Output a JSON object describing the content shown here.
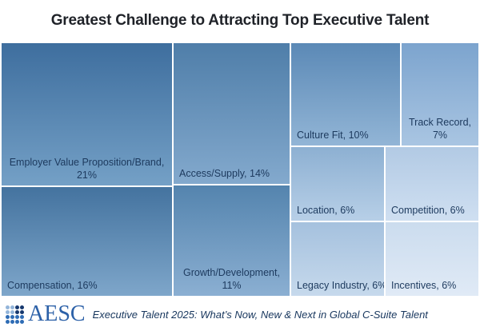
{
  "title": "Greatest Challenge to Attracting Top Executive Talent",
  "chart_data": {
    "type": "treemap",
    "title": "Greatest Challenge to Attracting Top Executive Talent",
    "unit": "percent",
    "legend": "none",
    "nodes": [
      {
        "name": "Employer Value Proposition/Brand",
        "value": 21,
        "label": "Employer Value Proposition/Brand,\n21%",
        "fill_top": "#3e6e9e",
        "fill_bottom": "#74a0c6"
      },
      {
        "name": "Compensation",
        "value": 16,
        "label": "Compensation, 16%",
        "fill_top": "#44739f",
        "fill_bottom": "#7ea6ca"
      },
      {
        "name": "Access/Supply",
        "value": 14,
        "label": "Access/Supply, 14%",
        "fill_top": "#4f7ea9",
        "fill_bottom": "#83a9cd"
      },
      {
        "name": "Growth/Development",
        "value": 11,
        "label": "Growth/Development,\n11%",
        "fill_top": "#5484ae",
        "fill_bottom": "#8bafd2"
      },
      {
        "name": "Culture Fit",
        "value": 10,
        "label": "Culture Fit, 10%",
        "fill_top": "#5b89b6",
        "fill_bottom": "#92b5d6"
      },
      {
        "name": "Track Record",
        "value": 7,
        "label": "Track Record,\n7%",
        "fill_top": "#7ca4ce",
        "fill_bottom": "#a9c5e2"
      },
      {
        "name": "Location",
        "value": 6,
        "label": "Location, 6%",
        "fill_top": "#8db0d2",
        "fill_bottom": "#b7cfe7"
      },
      {
        "name": "Competition",
        "value": 6,
        "label": "Competition, 6%",
        "fill_top": "#b2cae4",
        "fill_bottom": "#cfdff1"
      },
      {
        "name": "Legacy Industry",
        "value": 6,
        "label": "Legacy Industry, 6%",
        "fill_top": "#a5c1de",
        "fill_bottom": "#c6d9ec"
      },
      {
        "name": "Incentives",
        "value": 6,
        "label": "Incentives, 6%",
        "fill_top": "#cbdcee",
        "fill_bottom": "#e0eaf6"
      }
    ]
  },
  "footer": {
    "brand": "AESC",
    "caption": "Executive Talent 2025: What’s Now, New & Next in Global C-Suite Talent"
  },
  "colors": {
    "label_text": "#1d3a5e",
    "title_text": "#1f2228",
    "brand_blue": "#2c61a8",
    "logo_dark": "#16386e",
    "logo_light": "#93b5da",
    "logo_mid": "#2e6cb5"
  }
}
